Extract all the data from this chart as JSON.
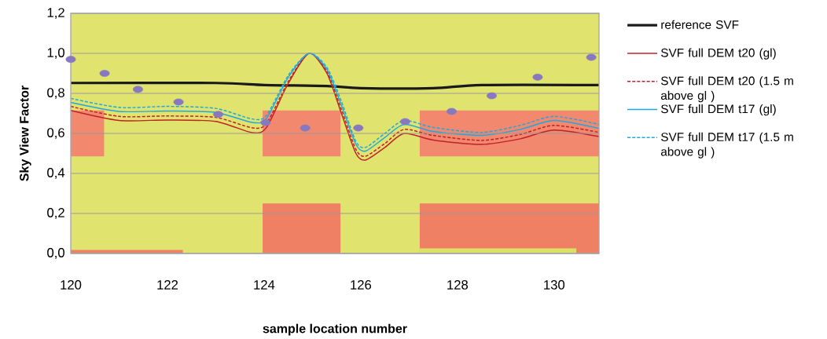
{
  "chart_data": {
    "type": "line",
    "xlabel": "sample location number",
    "ylabel": "Sky View Factor",
    "xlim": [
      120,
      130.93
    ],
    "ylim": [
      0,
      1.2
    ],
    "xticks": [
      120,
      122,
      124,
      126,
      128,
      130
    ],
    "yticks": [
      {
        "value": 0,
        "label": "0,0"
      },
      {
        "value": 0.2,
        "label": "0,2"
      },
      {
        "value": 0.4,
        "label": "0,4"
      },
      {
        "value": 0.6,
        "label": "0,6"
      },
      {
        "value": 0.8,
        "label": "0,8"
      },
      {
        "value": 1.0,
        "label": "1,0"
      },
      {
        "value": 1.2,
        "label": "1,2"
      }
    ],
    "grid": "y",
    "legend": "right",
    "series": [
      {
        "name": "reference SVF",
        "color": "#1a1a1a",
        "line_style": "solid",
        "x": [
          120,
          123,
          124,
          125.3,
          126,
          127.5,
          128.5,
          130.93
        ],
        "values": [
          0.852,
          0.852,
          0.842,
          0.837,
          0.826,
          0.826,
          0.842,
          0.842
        ]
      },
      {
        "name": "SVF full DEM t20 (gl)",
        "color": "#c0202a",
        "line_style": "solid",
        "x": [
          120,
          121,
          122,
          123,
          123.75,
          124.05,
          124.5,
          124.93,
          125.3,
          125.6,
          125.9,
          126.1,
          126.5,
          126.9,
          127.5,
          128.5,
          129.3,
          130,
          130.93
        ],
        "values": [
          0.715,
          0.665,
          0.667,
          0.66,
          0.604,
          0.63,
          0.85,
          1.0,
          0.9,
          0.7,
          0.5,
          0.467,
          0.53,
          0.6,
          0.567,
          0.545,
          0.573,
          0.617,
          0.584
        ]
      },
      {
        "name": "SVF full DEM t20 (1.5 m above gl )",
        "color": "#c0202a",
        "line_style": "dashed",
        "x": [
          120,
          121,
          122,
          123,
          123.75,
          124.05,
          124.5,
          124.93,
          125.3,
          125.6,
          125.9,
          126.1,
          126.5,
          126.9,
          127.5,
          128.5,
          129.3,
          130,
          130.93
        ],
        "values": [
          0.735,
          0.685,
          0.687,
          0.68,
          0.628,
          0.65,
          0.86,
          1.0,
          0.91,
          0.72,
          0.52,
          0.486,
          0.55,
          0.62,
          0.59,
          0.565,
          0.595,
          0.64,
          0.605
        ]
      },
      {
        "name": "SVF full DEM  t17 (gl)",
        "color": "#1ea8e0",
        "line_style": "solid",
        "x": [
          120,
          121,
          122,
          123,
          123.75,
          124.05,
          124.5,
          124.93,
          125.3,
          125.6,
          125.9,
          126.1,
          126.5,
          126.9,
          127.5,
          128.5,
          129.3,
          130,
          130.93
        ],
        "values": [
          0.755,
          0.71,
          0.712,
          0.705,
          0.655,
          0.675,
          0.88,
          1.0,
          0.92,
          0.74,
          0.545,
          0.512,
          0.58,
          0.645,
          0.61,
          0.59,
          0.62,
          0.665,
          0.625
        ]
      },
      {
        "name": "SVF full DEM t17 (1.5 m above gl )",
        "color": "#1ea8e0",
        "line_style": "dashed",
        "x": [
          120,
          121,
          122,
          123,
          123.75,
          124.05,
          124.5,
          124.93,
          125.3,
          125.6,
          125.9,
          126.1,
          126.5,
          126.9,
          127.5,
          128.5,
          129.3,
          130,
          130.93
        ],
        "values": [
          0.775,
          0.73,
          0.735,
          0.725,
          0.672,
          0.69,
          0.89,
          1.0,
          0.93,
          0.76,
          0.56,
          0.53,
          0.6,
          0.665,
          0.63,
          0.605,
          0.64,
          0.685,
          0.645
        ]
      },
      {
        "type": "area",
        "color": "#f2886e",
        "x": [
          120,
          120.69,
          121,
          123.97,
          125.58,
          126,
          127.22,
          130.93
        ],
        "values": [
          0.715,
          0.715,
          null,
          0.715,
          0.715,
          null,
          0.715,
          0.715
        ]
      },
      {
        "type": "area",
        "color": "#e0e46e",
        "x": [
          120,
          130.93
        ],
        "values": [
          0.485,
          0.485
        ]
      },
      {
        "type": "area",
        "color": "#f08064",
        "x": [
          120,
          122.32,
          123,
          123.97,
          125.58,
          126,
          127.22,
          130.93
        ],
        "values": [
          0.018,
          0.018,
          null,
          0.25,
          0.25,
          null,
          0.25,
          0.25
        ]
      },
      {
        "type": "area",
        "color": "#dbe066",
        "x": [
          127.22,
          130.46
        ],
        "values": [
          0.025,
          0.025
        ]
      },
      {
        "type": "scatter",
        "color": "#8878c0",
        "marker": "circle",
        "x": [
          120.0,
          120.7,
          121.39,
          122.23,
          123.05,
          124.03,
          124.85,
          125.95,
          126.92,
          127.88,
          128.71,
          129.66,
          130.77
        ],
        "values": [
          0.97,
          0.9,
          0.82,
          0.757,
          0.695,
          0.654,
          0.627,
          0.627,
          0.659,
          0.71,
          0.788,
          0.881,
          0.98
        ]
      }
    ]
  }
}
